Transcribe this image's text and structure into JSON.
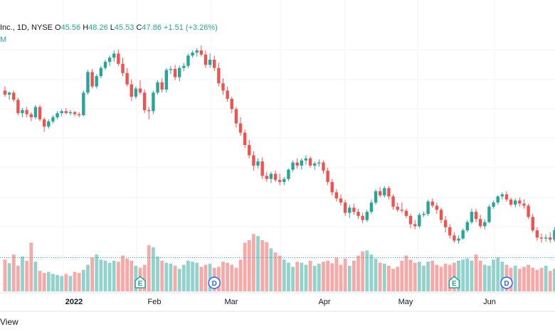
{
  "legend": {
    "symbol": "Inc., 1D, NYSE",
    "open_label": "O",
    "open": "45.56",
    "high_label": "H",
    "high": "48.26",
    "low_label": "L",
    "low": "45.53",
    "close_label": "C",
    "close": "47.86",
    "change": "+1.51 (+3.26%)",
    "line2": "M"
  },
  "footer": {
    "text": "View"
  },
  "colors": {
    "up": "#26a69a",
    "down": "#ef5350",
    "up_vol": "#92d2cc",
    "down_vol": "#f7a9a7",
    "grid": "#f0f3fa",
    "marker": "#2962ff"
  },
  "chart_data": {
    "type": "candlestick",
    "x_tick_labels": [
      "2022",
      "Feb",
      "Mar",
      "Apr",
      "May",
      "Jun"
    ],
    "price_range": [
      38.5,
      58.0
    ],
    "candles": [
      [
        53.2,
        53.6,
        52.6,
        52.8
      ],
      [
        52.8,
        53.1,
        52.3,
        53.0
      ],
      [
        53.0,
        53.2,
        52.1,
        52.3
      ],
      [
        52.3,
        52.5,
        50.8,
        51.0
      ],
      [
        51.0,
        51.5,
        50.6,
        51.3
      ],
      [
        51.3,
        51.6,
        50.6,
        50.9
      ],
      [
        50.9,
        51.1,
        50.2,
        50.6
      ],
      [
        50.6,
        51.8,
        50.4,
        51.6
      ],
      [
        51.6,
        51.8,
        50.2,
        50.4
      ],
      [
        50.4,
        50.6,
        49.2,
        49.7
      ],
      [
        49.7,
        50.4,
        49.5,
        50.2
      ],
      [
        50.2,
        50.8,
        50.0,
        50.6
      ],
      [
        50.6,
        51.2,
        50.4,
        51.0
      ],
      [
        51.0,
        51.4,
        50.7,
        51.2
      ],
      [
        51.2,
        51.5,
        50.9,
        51.0
      ],
      [
        51.0,
        51.3,
        50.8,
        51.1
      ],
      [
        51.1,
        51.2,
        50.7,
        50.9
      ],
      [
        50.9,
        51.1,
        50.6,
        50.8
      ],
      [
        50.8,
        53.2,
        50.7,
        53.0
      ],
      [
        53.0,
        55.2,
        52.8,
        55.0
      ],
      [
        55.0,
        55.3,
        53.4,
        53.6
      ],
      [
        53.6,
        54.8,
        53.4,
        54.6
      ],
      [
        54.6,
        55.6,
        54.4,
        55.4
      ],
      [
        55.4,
        56.2,
        55.2,
        56.0
      ],
      [
        56.0,
        56.6,
        55.6,
        56.4
      ],
      [
        56.4,
        57.1,
        56.0,
        56.8
      ],
      [
        56.8,
        57.2,
        55.6,
        55.8
      ],
      [
        55.8,
        56.4,
        54.6,
        54.9
      ],
      [
        54.9,
        55.4,
        53.6,
        53.8
      ],
      [
        53.8,
        54.3,
        52.2,
        52.6
      ],
      [
        52.6,
        53.6,
        52.4,
        53.4
      ],
      [
        53.4,
        54.2,
        52.8,
        53.0
      ],
      [
        53.0,
        53.3,
        51.0,
        51.3
      ],
      [
        51.3,
        51.6,
        50.4,
        51.2
      ],
      [
        51.2,
        53.2,
        50.9,
        53.0
      ],
      [
        53.0,
        54.2,
        52.8,
        54.0
      ],
      [
        54.0,
        54.4,
        53.0,
        53.3
      ],
      [
        53.3,
        55.4,
        53.0,
        55.2
      ],
      [
        55.2,
        55.6,
        54.8,
        55.3
      ],
      [
        55.3,
        55.7,
        54.2,
        54.5
      ],
      [
        54.5,
        55.6,
        54.1,
        55.4
      ],
      [
        55.4,
        55.9,
        55.1,
        55.6
      ],
      [
        55.6,
        56.8,
        55.4,
        56.6
      ],
      [
        56.6,
        57.1,
        56.4,
        56.9
      ],
      [
        56.9,
        57.3,
        56.5,
        57.1
      ],
      [
        57.1,
        57.6,
        56.5,
        56.7
      ],
      [
        56.7,
        57.1,
        55.4,
        55.7
      ],
      [
        55.7,
        56.8,
        55.4,
        56.2
      ],
      [
        56.2,
        56.6,
        55.1,
        55.4
      ],
      [
        55.4,
        55.9,
        53.6,
        53.9
      ],
      [
        53.9,
        54.4,
        52.8,
        53.2
      ],
      [
        53.2,
        53.6,
        52.1,
        52.4
      ],
      [
        52.4,
        52.6,
        51.0,
        51.4
      ],
      [
        51.4,
        51.6,
        49.6,
        50.0
      ],
      [
        50.0,
        50.6,
        48.8,
        49.1
      ],
      [
        49.1,
        49.4,
        47.6,
        47.9
      ],
      [
        47.9,
        48.4,
        46.6,
        46.9
      ],
      [
        46.9,
        47.3,
        45.4,
        45.9
      ],
      [
        45.9,
        46.6,
        45.6,
        46.3
      ],
      [
        46.3,
        46.7,
        44.6,
        44.9
      ],
      [
        44.9,
        45.3,
        44.3,
        44.6
      ],
      [
        44.6,
        45.3,
        44.2,
        45.1
      ],
      [
        45.1,
        45.4,
        44.3,
        44.5
      ],
      [
        44.5,
        45.1,
        44.0,
        44.3
      ],
      [
        44.3,
        44.8,
        44.0,
        44.6
      ],
      [
        44.6,
        45.6,
        44.4,
        45.5
      ],
      [
        45.5,
        46.4,
        45.3,
        46.2
      ],
      [
        46.2,
        46.6,
        45.6,
        45.9
      ],
      [
        45.9,
        46.6,
        45.5,
        46.4
      ],
      [
        46.4,
        46.9,
        46.0,
        46.6
      ],
      [
        46.6,
        46.8,
        45.7,
        45.9
      ],
      [
        45.9,
        46.3,
        45.5,
        46.1
      ],
      [
        46.1,
        46.5,
        45.8,
        46.2
      ],
      [
        46.2,
        46.4,
        45.1,
        45.4
      ],
      [
        45.4,
        45.7,
        44.0,
        44.3
      ],
      [
        44.3,
        44.6,
        43.0,
        43.3
      ],
      [
        43.3,
        43.6,
        42.4,
        42.7
      ],
      [
        42.7,
        43.1,
        42.0,
        42.3
      ],
      [
        42.3,
        42.6,
        41.0,
        41.3
      ],
      [
        41.3,
        42.1,
        40.8,
        41.8
      ],
      [
        41.8,
        42.2,
        41.1,
        41.4
      ],
      [
        41.4,
        41.7,
        40.7,
        41.0
      ],
      [
        41.0,
        41.3,
        40.3,
        40.6
      ],
      [
        40.6,
        41.6,
        40.4,
        41.4
      ],
      [
        41.4,
        42.6,
        41.2,
        42.3
      ],
      [
        42.3,
        43.6,
        42.1,
        43.4
      ],
      [
        43.4,
        43.8,
        42.8,
        43.0
      ],
      [
        43.0,
        43.9,
        42.8,
        43.7
      ],
      [
        43.7,
        43.9,
        42.6,
        42.9
      ],
      [
        42.9,
        43.1,
        41.6,
        41.9
      ],
      [
        41.9,
        42.3,
        41.4,
        41.6
      ],
      [
        41.6,
        42.3,
        41.3,
        41.5
      ],
      [
        41.5,
        41.7,
        40.8,
        41.0
      ],
      [
        41.0,
        41.2,
        39.8,
        40.2
      ],
      [
        40.2,
        40.6,
        39.7,
        40.0
      ],
      [
        40.0,
        41.3,
        39.8,
        41.1
      ],
      [
        41.1,
        41.4,
        40.9,
        41.2
      ],
      [
        41.2,
        42.6,
        41.0,
        42.4
      ],
      [
        42.4,
        42.7,
        41.8,
        42.0
      ],
      [
        42.0,
        42.3,
        41.2,
        41.6
      ],
      [
        41.6,
        41.8,
        40.3,
        40.6
      ],
      [
        40.6,
        41.0,
        39.4,
        39.9
      ],
      [
        39.9,
        40.2,
        38.8,
        39.1
      ],
      [
        39.1,
        39.4,
        38.4,
        38.6
      ],
      [
        38.6,
        39.1,
        38.3,
        38.8
      ],
      [
        38.8,
        39.8,
        38.7,
        39.6
      ],
      [
        39.6,
        40.6,
        39.4,
        40.4
      ],
      [
        40.4,
        41.7,
        40.2,
        41.4
      ],
      [
        41.4,
        41.7,
        40.4,
        40.7
      ],
      [
        40.7,
        41.1,
        39.8,
        40.0
      ],
      [
        40.0,
        40.7,
        39.7,
        40.4
      ],
      [
        40.4,
        42.1,
        40.3,
        41.9
      ],
      [
        41.9,
        42.5,
        41.7,
        42.3
      ],
      [
        42.3,
        43.0,
        42.1,
        42.9
      ],
      [
        42.9,
        43.3,
        42.6,
        43.1
      ],
      [
        43.1,
        43.4,
        42.4,
        42.6
      ],
      [
        42.6,
        42.8,
        41.9,
        42.1
      ],
      [
        42.1,
        42.7,
        41.8,
        42.5
      ],
      [
        42.5,
        42.8,
        41.9,
        42.2
      ],
      [
        42.2,
        42.6,
        41.7,
        42.0
      ],
      [
        42.0,
        42.2,
        40.7,
        40.9
      ],
      [
        40.9,
        41.2,
        39.4,
        39.6
      ],
      [
        39.6,
        39.9,
        38.6,
        38.9
      ],
      [
        38.9,
        39.3,
        38.4,
        38.8
      ],
      [
        38.8,
        39.2,
        38.5,
        38.9
      ],
      [
        38.9,
        39.4,
        38.4,
        38.7
      ],
      [
        38.7,
        39.9,
        38.5,
        39.6
      ]
    ],
    "volume_levels": [
      0.62,
      0.55,
      0.72,
      0.5,
      0.68,
      0.6,
      0.95,
      0.58,
      0.4,
      0.36,
      0.38,
      0.34,
      0.32,
      0.3,
      0.34,
      0.3,
      0.38,
      0.36,
      0.42,
      0.52,
      0.66,
      0.72,
      0.62,
      0.6,
      0.56,
      0.6,
      0.58,
      0.7,
      0.64,
      0.6,
      0.5,
      0.46,
      0.52,
      0.9,
      0.86,
      0.68,
      0.6,
      0.56,
      0.54,
      0.5,
      0.44,
      0.52,
      0.6,
      0.58,
      0.56,
      0.48,
      0.52,
      0.54,
      0.46,
      0.48,
      0.58,
      0.56,
      0.52,
      0.46,
      0.62,
      0.95,
      1.0,
      1.12,
      1.08,
      1.0,
      0.96,
      0.84,
      0.76,
      0.7,
      0.62,
      0.56,
      0.48,
      0.58,
      0.56,
      0.52,
      0.6,
      0.5,
      0.54,
      0.58,
      0.6,
      0.55,
      0.66,
      0.52,
      0.64,
      0.5,
      0.6,
      0.7,
      0.78,
      0.8,
      0.72,
      0.64,
      0.56,
      0.54,
      0.5,
      0.44,
      0.48,
      0.6,
      0.7,
      0.62,
      0.56,
      0.58,
      0.5,
      0.58,
      0.6,
      0.52,
      0.48,
      0.54,
      0.52,
      0.56,
      0.6,
      0.62,
      0.64,
      0.6,
      0.72,
      0.6,
      0.52,
      0.5,
      0.62,
      0.66,
      0.58,
      0.52,
      0.46,
      0.5,
      0.44,
      0.48,
      0.52,
      0.46,
      0.42,
      0.46,
      0.5,
      0.4,
      0.44,
      0.48
    ],
    "avg_volume_level": 0.66,
    "events": [
      {
        "label": "E",
        "candle_index": 31
      },
      {
        "label": "D",
        "candle_index": 48
      },
      {
        "label": "E",
        "candle_index": 103
      },
      {
        "label": "D",
        "candle_index": 115
      }
    ]
  }
}
